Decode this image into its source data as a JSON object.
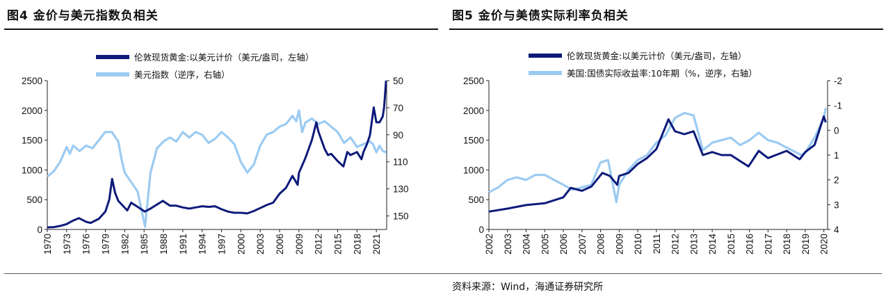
{
  "source_note": "资料来源：Wind，海通证券研究所",
  "chart_data": [
    {
      "type": "line",
      "title": "图4   金价与美元指数负相关",
      "colors": {
        "gold": "#0d1a7a",
        "secondary": "#9ccbf2"
      },
      "x_range": [
        1970,
        2022.6
      ],
      "x_ticks": [
        "1970",
        "1973",
        "1976",
        "1979",
        "1982",
        "1985",
        "1988",
        "1991",
        "1994",
        "1997",
        "2000",
        "2003",
        "2006",
        "2009",
        "2012",
        "2015",
        "2018",
        "2021"
      ],
      "y_left": {
        "range": [
          0,
          2500
        ],
        "ticks": [
          "0",
          "500",
          "1000",
          "1500",
          "2000",
          "2500"
        ]
      },
      "y_right": {
        "range": [
          50,
          160
        ],
        "inverted": true,
        "ticks": [
          "50",
          "70",
          "90",
          "110",
          "130",
          "150"
        ]
      },
      "legend_position": "top-center",
      "series": [
        {
          "name": "伦敦现货黄金:以美元计价（美元/盎司，左轴）",
          "axis": "left",
          "color": "#0d1a7a",
          "x": [
            1970,
            1971,
            1972,
            1973,
            1973.5,
            1974,
            1974.9,
            1976,
            1976.7,
            1978,
            1979,
            1979.6,
            1980.05,
            1980.5,
            1981,
            1982.4,
            1983,
            1984,
            1985.1,
            1986,
            1987.9,
            1989,
            1990,
            1991,
            1992,
            1993,
            1994,
            1995,
            1996,
            1997,
            1998,
            1999,
            2000,
            2001,
            2002,
            2003,
            2004,
            2005,
            2006,
            2007,
            2008,
            2008.8,
            2009,
            2010,
            2011,
            2011.7,
            2012,
            2013,
            2013.5,
            2014,
            2015,
            2015.9,
            2016.5,
            2017,
            2018,
            2018.7,
            2019,
            2019.5,
            2020,
            2020.6,
            2021,
            2021.5,
            2022,
            2022.2,
            2022.5
          ],
          "y": [
            35,
            40,
            60,
            90,
            120,
            150,
            190,
            130,
            110,
            180,
            300,
            500,
            850,
            620,
            480,
            320,
            450,
            380,
            300,
            350,
            480,
            400,
            400,
            370,
            350,
            370,
            390,
            380,
            390,
            340,
            300,
            280,
            280,
            270,
            310,
            360,
            410,
            450,
            600,
            700,
            900,
            750,
            950,
            1200,
            1500,
            1800,
            1650,
            1350,
            1250,
            1270,
            1150,
            1060,
            1300,
            1250,
            1300,
            1180,
            1300,
            1420,
            1580,
            2050,
            1800,
            1800,
            1900,
            2050,
            2500
          ]
        },
        {
          "name": "美元指数（逆序，右轴）",
          "axis": "right",
          "color": "#9ccbf2",
          "x": [
            1970,
            1971,
            1972,
            1973,
            1973.5,
            1974,
            1975,
            1976,
            1977,
            1978,
            1978.8,
            1979,
            1980,
            1981,
            1981.5,
            1982,
            1983,
            1984,
            1985.15,
            1986,
            1987,
            1988,
            1989,
            1990,
            1991,
            1992,
            1993,
            1994,
            1995,
            1996,
            1997,
            1998,
            1999,
            2000,
            2001,
            2002,
            2003,
            2004,
            2005,
            2006,
            2007,
            2008,
            2008.6,
            2009,
            2009.5,
            2010,
            2011,
            2012,
            2013,
            2014,
            2015,
            2016,
            2017,
            2018,
            2019,
            2020,
            2020.5,
            2021,
            2021.5,
            2022,
            2022.5
          ],
          "y": [
            121,
            117,
            110,
            99,
            104,
            98,
            102,
            98,
            100,
            94,
            89,
            88,
            88,
            95,
            108,
            118,
            125,
            132,
            158,
            118,
            100,
            95,
            92,
            95,
            88,
            92,
            88,
            90,
            96,
            93,
            88,
            92,
            97,
            110,
            118,
            112,
            98,
            90,
            88,
            84,
            82,
            76,
            80,
            72,
            88,
            81,
            78,
            82,
            80,
            84,
            88,
            96,
            92,
            99,
            97,
            95,
            97,
            103,
            98,
            102,
            103
          ]
        }
      ]
    },
    {
      "type": "line",
      "title": "图5   金价与美债实际利率负相关",
      "colors": {
        "gold": "#0d1a7a",
        "secondary": "#9ccbf2"
      },
      "x_range": [
        2002,
        2020.2
      ],
      "x_ticks": [
        "2002",
        "2003",
        "2004",
        "2005",
        "2006",
        "2007",
        "2008",
        "2009",
        "2010",
        "2011",
        "2012",
        "2013",
        "2014",
        "2015",
        "2016",
        "2017",
        "2018",
        "2019",
        "2020"
      ],
      "y_left": {
        "range": [
          0,
          2500
        ],
        "ticks": [
          "0",
          "500",
          "1000",
          "1500",
          "2000",
          "2500"
        ]
      },
      "y_right": {
        "range": [
          -2,
          4
        ],
        "inverted": true,
        "ticks": [
          "-2",
          "-1",
          "0",
          "1",
          "2",
          "3",
          "4"
        ]
      },
      "legend_position": "top-center",
      "series": [
        {
          "name": "伦敦现货黄金:以美元计价（美元/盎司，左轴）",
          "axis": "left",
          "color": "#0d1a7a",
          "x": [
            2002,
            2003,
            2004,
            2005,
            2006,
            2006.4,
            2007,
            2007.5,
            2008.1,
            2008.5,
            2008.9,
            2009,
            2009.5,
            2010,
            2010.5,
            2011,
            2011.65,
            2012,
            2012.5,
            2013,
            2013.5,
            2014,
            2014.5,
            2015,
            2015.5,
            2015.95,
            2016.5,
            2017,
            2017.5,
            2018,
            2018.7,
            2019,
            2019.5,
            2020,
            2020.1
          ],
          "y": [
            300,
            350,
            410,
            440,
            540,
            700,
            650,
            720,
            950,
            900,
            750,
            900,
            950,
            1100,
            1200,
            1350,
            1850,
            1650,
            1600,
            1650,
            1250,
            1300,
            1250,
            1250,
            1150,
            1060,
            1320,
            1200,
            1260,
            1320,
            1180,
            1300,
            1420,
            1900,
            1800
          ]
        },
        {
          "name": "美国:国债实际收益率:10年期（%，逆序，右轴）",
          "axis": "right",
          "color": "#9ccbf2",
          "x": [
            2002,
            2002.5,
            2003,
            2003.5,
            2004,
            2004.5,
            2005,
            2006,
            2006.5,
            2007,
            2007.5,
            2008,
            2008.4,
            2008.85,
            2009,
            2009.5,
            2010,
            2010.5,
            2011,
            2011.5,
            2012,
            2012.5,
            2013,
            2013.5,
            2014,
            2014.5,
            2015,
            2015.5,
            2016,
            2016.5,
            2017,
            2017.5,
            2018,
            2018.8,
            2019,
            2019.5,
            2020,
            2020.1
          ],
          "y": [
            2.5,
            2.3,
            2.0,
            1.9,
            2.0,
            1.8,
            1.8,
            2.2,
            2.4,
            2.3,
            2.2,
            1.3,
            1.2,
            2.9,
            2.2,
            1.6,
            1.2,
            1.0,
            0.5,
            0.2,
            -0.5,
            -0.7,
            -0.6,
            0.8,
            0.5,
            0.4,
            0.3,
            0.6,
            0.4,
            0.1,
            0.4,
            0.5,
            0.7,
            1.0,
            0.9,
            0.3,
            -0.5,
            -0.9
          ]
        }
      ]
    }
  ]
}
